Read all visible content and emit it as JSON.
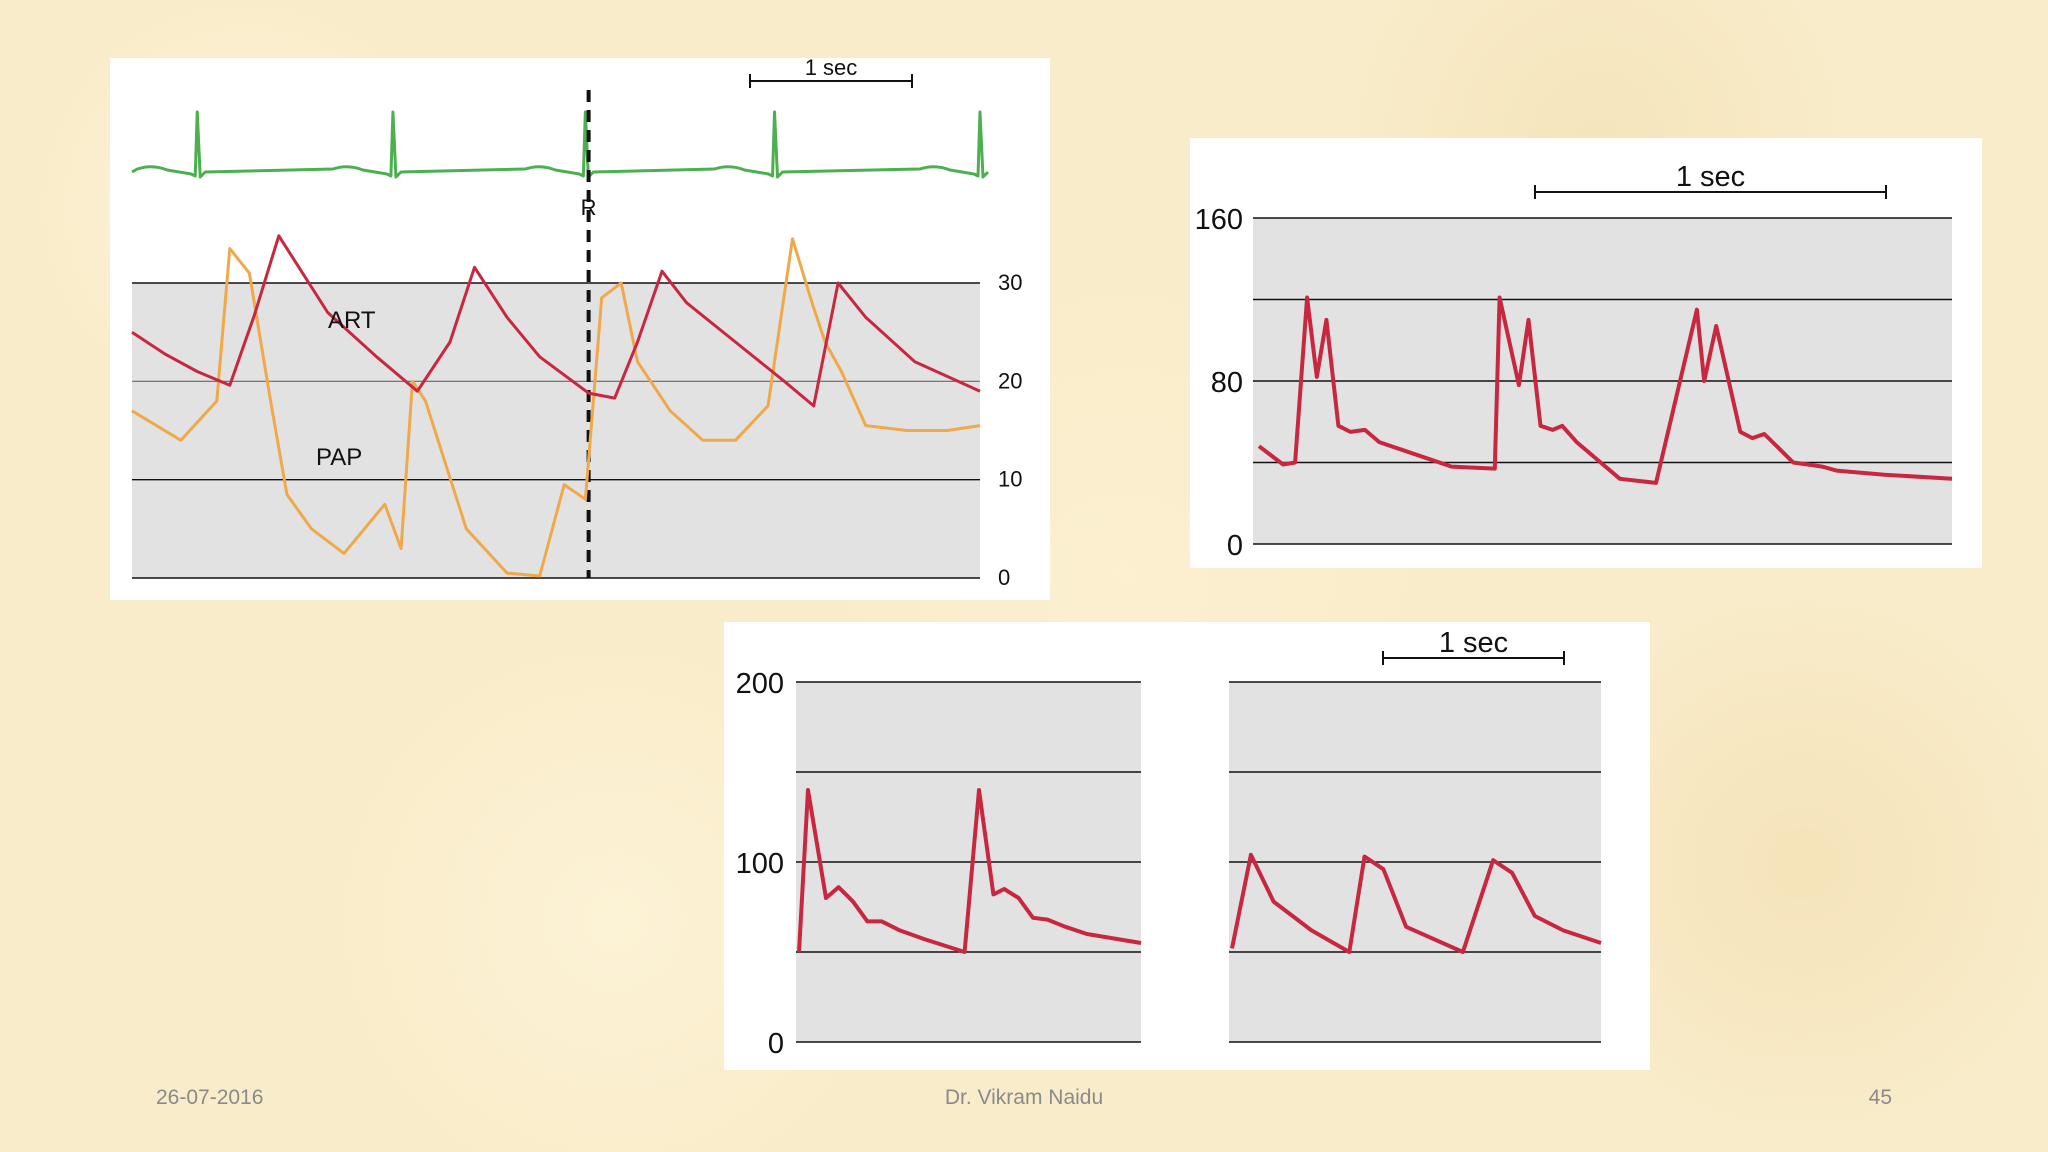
{
  "footer": {
    "date": "26-07-2016",
    "author": "Dr. Vikram Naidu",
    "page": "45"
  },
  "colors": {
    "ecg": "#4caf50",
    "art": "#c8283f",
    "pap": "#f0a94a",
    "grid_band": "#e2e2e2",
    "grid_line": "#111111"
  },
  "chart_data": [
    {
      "type": "line",
      "title": "",
      "scale_bar": "1 sec",
      "marker": "R",
      "ylim": [
        0,
        30
      ],
      "y_ticks": [
        "0",
        "10",
        "20",
        "30"
      ],
      "x_range_sec": [
        0,
        5.2
      ],
      "r_marker_sec": 2.8,
      "series": [
        {
          "name": "ECG",
          "color": "#4caf50",
          "r_peaks_sec": [
            0.4,
            1.6,
            2.78,
            3.94,
            5.2
          ]
        },
        {
          "name": "ART",
          "color": "#c8283f",
          "x_sec": [
            0,
            0.2,
            0.4,
            0.6,
            0.75,
            0.9,
            1.2,
            1.5,
            1.75,
            1.95,
            2.1,
            2.3,
            2.5,
            2.8,
            2.96,
            3.1,
            3.25,
            3.4,
            3.7,
            4.0,
            4.18,
            4.33,
            4.5,
            4.8,
            5.2
          ],
          "y": [
            25,
            22.8,
            21,
            19.6,
            26.7,
            34.8,
            27,
            22.5,
            19,
            24,
            31.6,
            26.5,
            22.5,
            18.8,
            18.3,
            24,
            31.2,
            28,
            24,
            20,
            17.5,
            30,
            26.5,
            22,
            19
          ]
        },
        {
          "name": "PAP",
          "color": "#f0a94a",
          "x_sec": [
            0,
            0.3,
            0.52,
            0.6,
            0.72,
            0.85,
            0.95,
            1.1,
            1.3,
            1.55,
            1.65,
            1.72,
            1.8,
            2.05,
            2.3,
            2.5,
            2.65,
            2.78,
            2.88,
            3.0,
            3.1,
            3.3,
            3.5,
            3.7,
            3.9,
            4.05,
            4.17,
            4.25,
            4.35,
            4.5,
            4.75,
            5.0,
            5.2
          ],
          "y": [
            17,
            14,
            18,
            33.5,
            31,
            18,
            8.5,
            5,
            2.5,
            7.5,
            3,
            20,
            18,
            5,
            0.5,
            0.2,
            9.5,
            8,
            28.5,
            30,
            22,
            17,
            14,
            14,
            17.5,
            34.5,
            28,
            24,
            21,
            15.5,
            15,
            15,
            15.5
          ]
        }
      ],
      "annotations": [
        "ART",
        "PAP"
      ]
    },
    {
      "type": "line",
      "title": "",
      "scale_bar": "1 sec",
      "ylim": [
        0,
        160
      ],
      "y_ticks": [
        "0",
        "80",
        "160"
      ],
      "gridlines": [
        0,
        40,
        80,
        120,
        160
      ],
      "series": [
        {
          "name": "",
          "color": "#c8283f",
          "x_sec": [
            0,
            0.1,
            0.15,
            0.2,
            0.24,
            0.28,
            0.33,
            0.38,
            0.44,
            0.5,
            0.6,
            0.8,
            0.98,
            1.0,
            1.08,
            1.12,
            1.17,
            1.22,
            1.26,
            1.32,
            1.38,
            1.44,
            1.5,
            1.65,
            1.82,
            1.85,
            1.9,
            2.0,
            2.05,
            2.1,
            2.16,
            2.22,
            2.28,
            2.34,
            2.4,
            2.6,
            2.88
          ],
          "y": [
            48,
            39,
            40,
            121,
            82,
            110,
            58,
            55,
            56,
            50,
            46,
            38,
            37,
            121,
            78,
            110,
            58,
            56,
            58,
            50,
            44,
            38,
            32,
            30,
            115,
            80,
            107,
            55,
            52,
            54,
            47,
            40,
            39,
            38,
            36,
            34,
            32
          ]
        }
      ]
    },
    {
      "type": "line",
      "title": "",
      "scale_bar": "1 sec",
      "ylim": [
        0,
        200
      ],
      "y_ticks": [
        "0",
        "100",
        "200"
      ],
      "gridlines": [
        0,
        50,
        100,
        150,
        200
      ],
      "panels": [
        {
          "name": "",
          "color": "#c8283f",
          "x_sec": [
            0,
            0.05,
            0.15,
            0.22,
            0.3,
            0.38,
            0.46,
            0.56,
            0.7,
            0.92,
            1.0,
            1.08,
            1.14,
            1.22,
            1.3,
            1.38,
            1.48,
            1.6,
            1.9
          ],
          "y": [
            50,
            140,
            80,
            86,
            78,
            67,
            67,
            62,
            57,
            50,
            140,
            82,
            85,
            80,
            69,
            68,
            64,
            60,
            55
          ]
        },
        {
          "name": "",
          "color": "#c8283f",
          "x_sec": [
            0,
            0.1,
            0.22,
            0.42,
            0.62,
            0.7,
            0.8,
            0.92,
            1.22,
            1.38,
            1.48,
            1.6,
            1.75,
            1.95
          ],
          "y": [
            52,
            104,
            78,
            62,
            50,
            103,
            96,
            64,
            50,
            101,
            94,
            70,
            62,
            55
          ]
        }
      ]
    }
  ]
}
